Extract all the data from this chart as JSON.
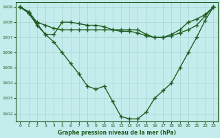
{
  "xlabel": "Graphe pression niveau de la mer (hPa)",
  "bg_color": "#c5ecec",
  "grid_color": "#a8d4d4",
  "line_color": "#1e5c1e",
  "marker": "+",
  "markersize": 4,
  "linewidth": 1.0,
  "ylim": [
    1001.5,
    1009.3
  ],
  "xlim": [
    -0.5,
    23.5
  ],
  "xticks": [
    0,
    1,
    2,
    3,
    4,
    5,
    6,
    7,
    8,
    9,
    10,
    11,
    12,
    13,
    14,
    15,
    16,
    17,
    18,
    19,
    20,
    21,
    22,
    23
  ],
  "yticks": [
    1002,
    1003,
    1004,
    1005,
    1006,
    1007,
    1008,
    1009
  ],
  "line1_x": [
    0,
    1,
    2,
    3,
    4,
    5,
    6,
    7,
    8,
    9,
    10,
    11,
    12,
    13,
    14,
    15,
    16,
    17,
    18,
    19,
    20,
    21,
    22,
    23
  ],
  "line1_y": [
    1009.0,
    1008.7,
    1008.0,
    1007.8,
    1007.6,
    1007.5,
    1007.5,
    1007.5,
    1007.5,
    1007.5,
    1007.5,
    1007.5,
    1007.5,
    1007.5,
    1007.5,
    1007.2,
    1007.0,
    1007.0,
    1007.2,
    1007.5,
    1008.0,
    1008.2,
    1008.5,
    1009.0
  ],
  "line2_x": [
    0,
    1,
    2,
    3,
    4,
    5,
    6,
    7,
    8,
    9,
    10,
    11,
    12,
    13,
    14,
    15,
    16,
    17,
    18,
    19,
    20,
    21,
    22,
    23
  ],
  "line2_y": [
    1009.0,
    1008.6,
    1007.9,
    1007.2,
    1007.2,
    1008.0,
    1008.0,
    1007.9,
    1007.8,
    1007.8,
    1007.7,
    1007.5,
    1007.4,
    1007.4,
    1007.3,
    1007.1,
    1007.0,
    1007.0,
    1007.1,
    1007.3,
    1007.5,
    1007.8,
    1008.4,
    1009.0
  ],
  "line3_x": [
    0,
    1,
    2,
    3,
    4,
    5,
    6,
    7,
    8,
    9,
    10,
    11,
    12,
    13,
    14,
    15,
    16,
    17,
    18,
    19,
    20,
    21,
    22,
    23
  ],
  "line3_y": [
    1009.0,
    1008.6,
    1007.8,
    1007.2,
    1006.7,
    1006.0,
    1005.3,
    1004.6,
    1003.8,
    1003.6,
    1003.8,
    1002.8,
    1001.8,
    1001.65,
    1001.65,
    1002.1,
    1003.0,
    1003.5,
    1004.0,
    1005.0,
    1006.0,
    1007.0,
    1008.1,
    1009.0
  ]
}
